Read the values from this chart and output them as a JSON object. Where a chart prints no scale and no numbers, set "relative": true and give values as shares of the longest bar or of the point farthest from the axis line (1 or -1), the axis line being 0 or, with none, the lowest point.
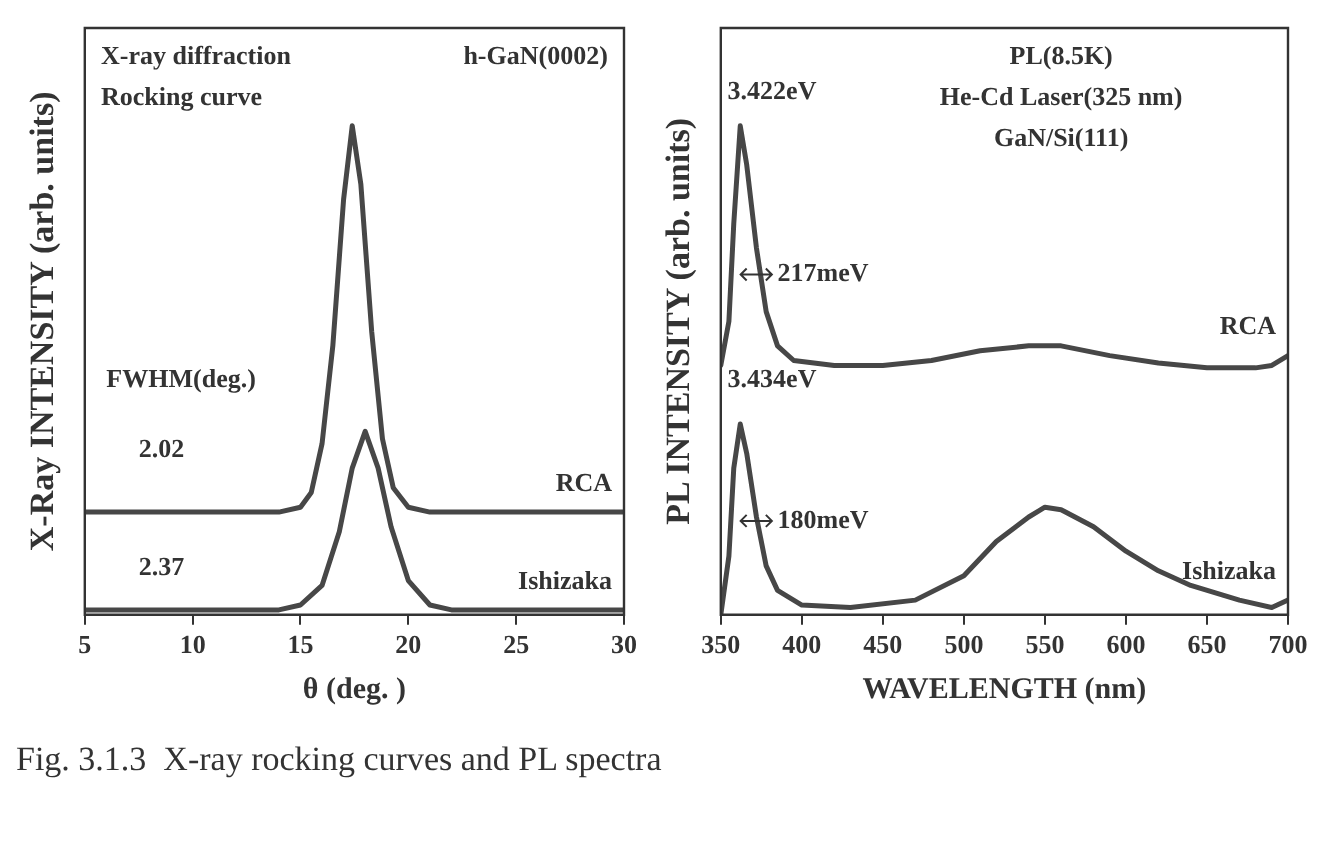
{
  "chart_data": [
    {
      "type": "line",
      "xlabel": "θ (deg. )",
      "ylabel": "X-Ray INTENSITY (arb. units)",
      "relative": true,
      "xlim": [
        5,
        30
      ],
      "xticks": [
        5,
        10,
        15,
        20,
        25,
        30
      ],
      "grid": false,
      "legend": false,
      "marker": "none",
      "line_style": "solid",
      "annotations": [
        "X-ray diffraction",
        "Rocking curve",
        "h-GaN(0002)",
        "FWHM(deg.)",
        "2.02",
        "2.37"
      ],
      "series": [
        {
          "name": "RCA",
          "color": "#474747",
          "x": [
            5,
            14,
            15,
            15.5,
            16,
            16.5,
            17,
            17.4,
            17.8,
            18.3,
            18.8,
            19.3,
            20,
            21,
            30
          ],
          "values": [
            0.21,
            0.21,
            0.22,
            0.25,
            0.35,
            0.55,
            0.85,
            1.0,
            0.88,
            0.58,
            0.36,
            0.26,
            0.22,
            0.21,
            0.21
          ]
        },
        {
          "name": "Ishizaka",
          "color": "#474747",
          "x": [
            5,
            14,
            15,
            16,
            16.8,
            17.4,
            18,
            18.6,
            19.2,
            20,
            21,
            22,
            30
          ],
          "values": [
            0.01,
            0.01,
            0.02,
            0.06,
            0.17,
            0.3,
            0.375,
            0.3,
            0.18,
            0.07,
            0.02,
            0.01,
            0.01
          ]
        }
      ]
    },
    {
      "type": "line",
      "xlabel": "WAVELENGTH (nm)",
      "ylabel": "PL INTENSITY (arb. units)",
      "relative": true,
      "xlim": [
        350,
        700
      ],
      "xticks": [
        350,
        400,
        450,
        500,
        550,
        600,
        650,
        700
      ],
      "grid": false,
      "legend": false,
      "marker": "none",
      "line_style": "solid",
      "annotations": [
        "PL(8.5K)",
        "He-Cd Laser(325 nm)",
        "GaN/Si(111)",
        "3.422eV",
        "217meV",
        "3.434eV",
        "180meV",
        "Fig. 3.1.3  X-ray rocking curves and PL spectra"
      ],
      "series": [
        {
          "name": "RCA",
          "color": "#474747",
          "x": [
            350,
            355,
            358,
            362,
            366,
            372,
            378,
            385,
            395,
            420,
            450,
            480,
            510,
            540,
            560,
            590,
            620,
            650,
            680,
            690,
            700
          ],
          "values": [
            0.51,
            0.6,
            0.8,
            1.0,
            0.92,
            0.75,
            0.62,
            0.55,
            0.52,
            0.51,
            0.51,
            0.52,
            0.54,
            0.55,
            0.55,
            0.53,
            0.515,
            0.505,
            0.505,
            0.51,
            0.53
          ]
        },
        {
          "name": "Ishizaka",
          "color": "#474747",
          "x": [
            350,
            355,
            358,
            362,
            366,
            372,
            378,
            385,
            400,
            430,
            470,
            500,
            520,
            540,
            550,
            560,
            580,
            600,
            620,
            640,
            670,
            690,
            700
          ],
          "values": [
            0.0,
            0.12,
            0.3,
            0.39,
            0.33,
            0.2,
            0.1,
            0.05,
            0.02,
            0.015,
            0.03,
            0.08,
            0.15,
            0.2,
            0.22,
            0.215,
            0.18,
            0.13,
            0.09,
            0.06,
            0.03,
            0.015,
            0.03
          ]
        }
      ]
    }
  ]
}
